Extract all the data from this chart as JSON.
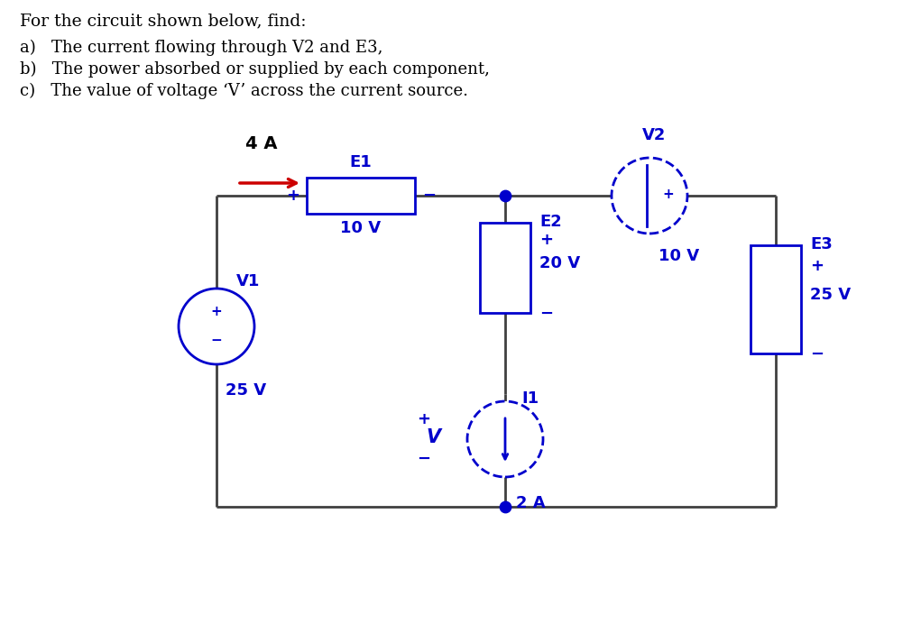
{
  "title_text": "For the circuit shown below, find:",
  "items": [
    "a)   The current flowing through V2 and E3,",
    "b)   The power absorbed or supplied by each component,",
    "c)   The value of voltage ‘V’ across the current source."
  ],
  "bg_color": "#ffffff",
  "circuit_color": "#0000cc",
  "wire_color": "#404040",
  "arrow_color": "#cc0000",
  "text_color": "#000000",
  "circuit_text_color": "#0000cc",
  "node_color": "#0000cc",
  "E1_label": "E1",
  "E2_label": "E2",
  "E2_value": "20 V",
  "E3_label": "E3",
  "E3_value": "25 V",
  "V1_label": "V1",
  "V1_value": "25 V",
  "V2_label": "V2",
  "V2_value": "10 V",
  "I1_label": "I1",
  "I1_value": "2 A",
  "current_label": "4 A",
  "V_label": "V"
}
